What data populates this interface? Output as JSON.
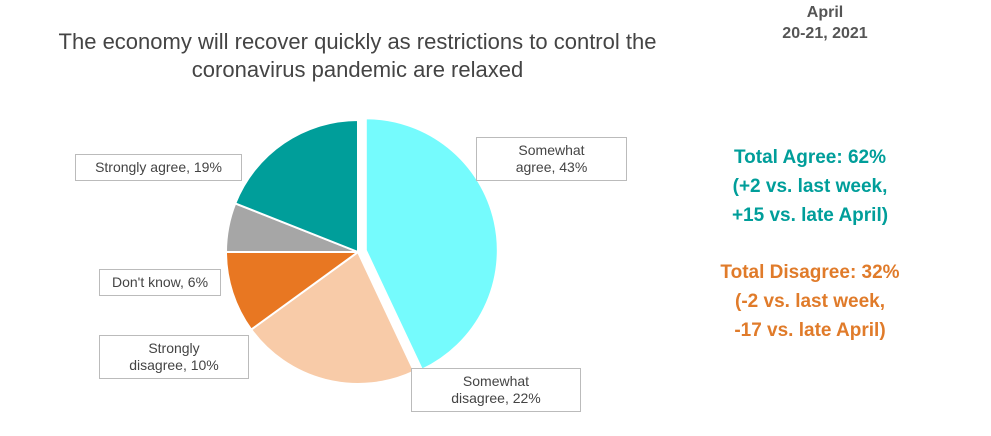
{
  "chart_data": {
    "type": "pie",
    "date_lines": [
      "April",
      "20-21, 2021"
    ],
    "title": "The economy will recover quickly as restrictions to control the coronavirus pandemic are relaxed",
    "values": [
      43,
      22,
      10,
      6,
      19
    ],
    "value_labels": [
      "Somewhat agree, 43%",
      "Somewhat disagree, 22%",
      "Strongly disagree, 10%",
      "Don't know, 6%",
      "Strongly agree, 19%"
    ],
    "colors": [
      "#75fbfd",
      "#f8cba8",
      "#e87722",
      "#a6a6a6",
      "#009e9a"
    ],
    "annotations": [
      {
        "color": "#009e9a",
        "lines": [
          "Total Agree: 62%",
          "(+2 vs. last week,",
          "+15 vs. late April)"
        ]
      },
      {
        "color": "#e07b2a",
        "lines": [
          "Total Disagree: 32%",
          "(-2 vs. last week,",
          "-17 vs. late April)"
        ]
      }
    ]
  }
}
